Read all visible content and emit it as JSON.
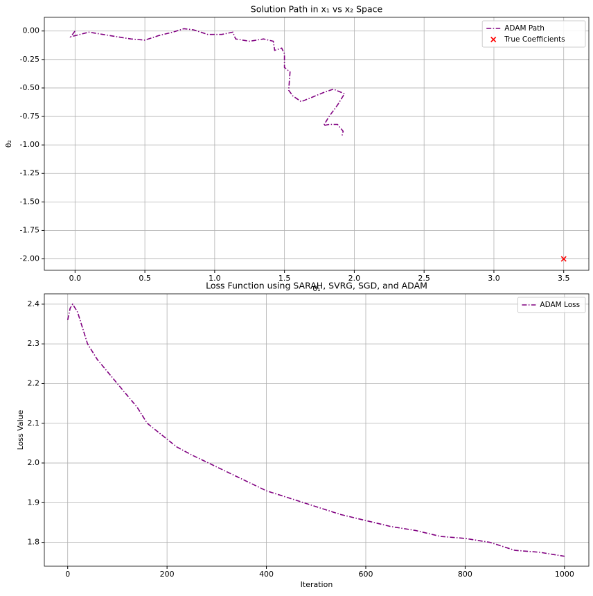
{
  "chart_data": [
    {
      "type": "line",
      "title": "Solution Path in x₁ vs x₂ Space",
      "xlabel": "θ₁",
      "ylabel": "θ₂",
      "xlim": [
        -0.22,
        3.68
      ],
      "ylim": [
        -2.1,
        0.12
      ],
      "xticks": [
        {
          "value": 0,
          "label": "0.0"
        },
        0.5,
        {
          "value": 1,
          "label": "1.0"
        },
        1.5,
        {
          "value": 2,
          "label": "2.0"
        },
        2.5,
        {
          "value": 3,
          "label": "3.0"
        },
        3.5
      ],
      "yticks": [
        {
          "value": 0,
          "label": "0.00"
        },
        -0.25,
        {
          "value": -0.5,
          "label": "-0.50"
        },
        -0.75,
        {
          "value": -1,
          "label": "-1.00"
        },
        -1.25,
        {
          "value": -1.5,
          "label": "-1.50"
        },
        -1.75,
        {
          "value": -2,
          "label": "-2.00"
        }
      ],
      "grid": true,
      "legend": "upper right",
      "series": [
        {
          "name": "ADAM Path",
          "type": "line",
          "color": "#800080",
          "x": [
            0,
            -0.03,
            0.1,
            0.2,
            0.3,
            0.4,
            0.5,
            0.6,
            0.7,
            0.78,
            0.85,
            0.95,
            1.05,
            1.13,
            1.15,
            1.25,
            1.35,
            1.42,
            1.43,
            1.48,
            1.5,
            1.5,
            1.54,
            1.53,
            1.56,
            1.62,
            1.7,
            1.78,
            1.85,
            1.93,
            1.88,
            1.82,
            1.78,
            1.82,
            1.88,
            1.92,
            1.91
          ],
          "values": [
            0,
            -0.05,
            -0.01,
            -0.03,
            -0.05,
            -0.07,
            -0.08,
            -0.04,
            -0.01,
            0.02,
            0.01,
            -0.03,
            -0.03,
            -0.01,
            -0.07,
            -0.09,
            -0.07,
            -0.09,
            -0.17,
            -0.15,
            -0.2,
            -0.32,
            -0.36,
            -0.52,
            -0.57,
            -0.62,
            -0.58,
            -0.54,
            -0.51,
            -0.55,
            -0.65,
            -0.75,
            -0.83,
            -0.82,
            -0.82,
            -0.88,
            -0.93
          ]
        },
        {
          "name": "True Coefficients",
          "type": "scatter",
          "color": "#ff0000",
          "x": [
            3.5
          ],
          "values": [
            -2
          ]
        }
      ]
    },
    {
      "type": "line",
      "title": "Loss Function using SARAH, SVRG, SGD, and ADAM",
      "xlabel": "Iteration",
      "ylabel": "Loss Value",
      "xlim": [
        -47,
        1049
      ],
      "ylim": [
        1.74,
        2.426
      ],
      "xticks": [
        0,
        200,
        400,
        600,
        800,
        1000
      ],
      "yticks": [
        1.8,
        1.9,
        {
          "value": 2,
          "label": "2.0"
        },
        2.1,
        2.2,
        2.3,
        2.4
      ],
      "grid": true,
      "legend": "upper right",
      "series": [
        {
          "name": "ADAM Loss",
          "type": "line",
          "color": "#800080",
          "x": [
            0,
            5,
            10,
            20,
            30,
            40,
            60,
            80,
            100,
            120,
            140,
            160,
            180,
            200,
            220,
            250,
            300,
            350,
            400,
            450,
            500,
            550,
            600,
            650,
            700,
            750,
            800,
            850,
            900,
            950,
            1000
          ],
          "values": [
            2.36,
            2.39,
            2.4,
            2.38,
            2.34,
            2.3,
            2.26,
            2.23,
            2.2,
            2.17,
            2.14,
            2.1,
            2.08,
            2.06,
            2.04,
            2.02,
            1.99,
            1.96,
            1.93,
            1.91,
            1.89,
            1.87,
            1.855,
            1.84,
            1.83,
            1.815,
            1.81,
            1.8,
            1.78,
            1.775,
            1.765
          ]
        }
      ]
    }
  ]
}
